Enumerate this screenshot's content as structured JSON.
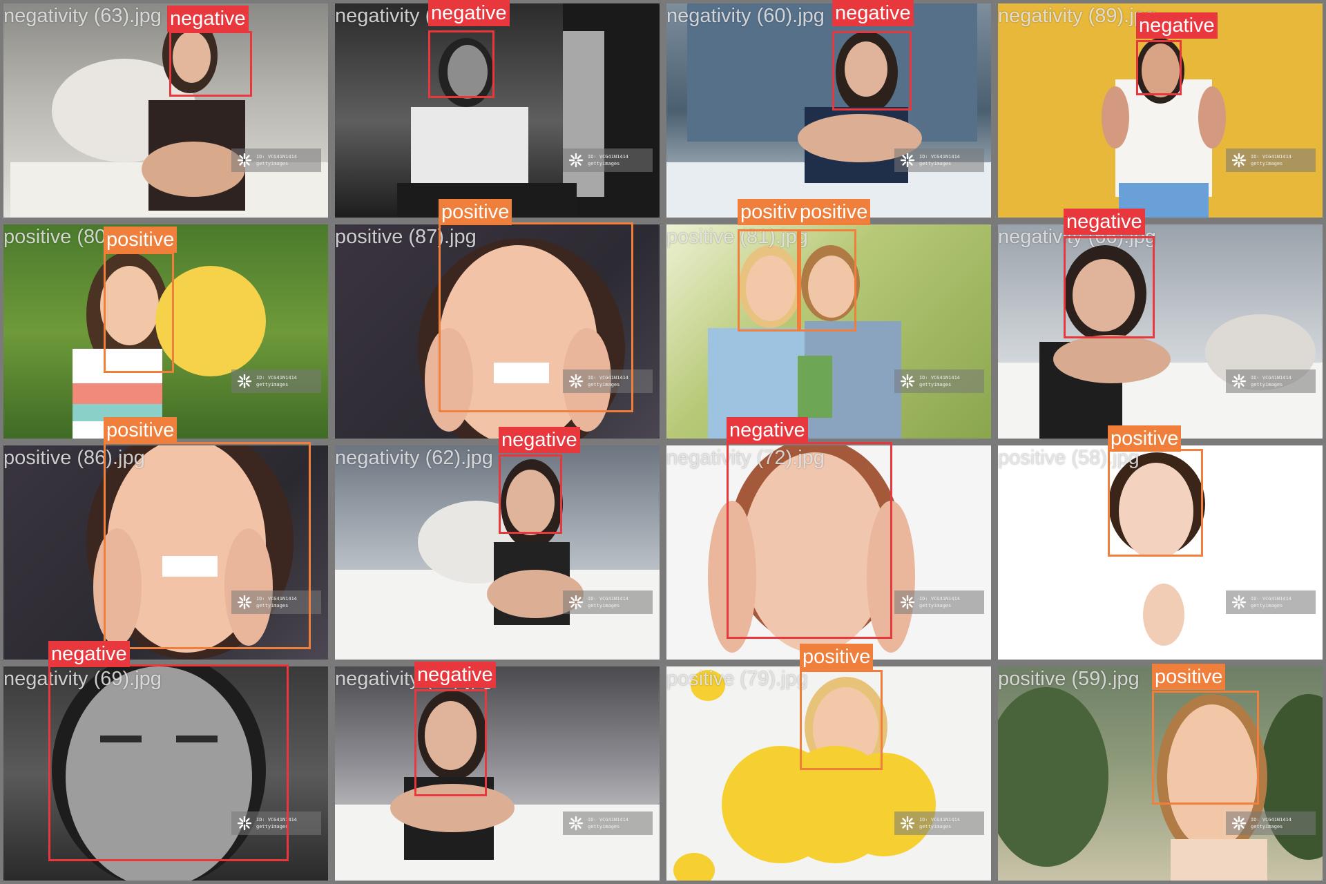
{
  "colors": {
    "negative": "#e8383d",
    "positive": "#f07f3c",
    "frame": "#7a7a7a"
  },
  "tiles": [
    {
      "file": "negativity (63).jpg",
      "label": "negative"
    },
    {
      "file": "negativity (5).jpg",
      "label": "negative"
    },
    {
      "file": "negativity (60).jpg",
      "label": "negative"
    },
    {
      "file": "negativity (89).jpg",
      "label": "negative"
    },
    {
      "file": "positive (80).jpg",
      "label": "positive"
    },
    {
      "file": "positive (87).jpg",
      "label": "positive"
    },
    {
      "file": "positive (81).jpg",
      "label": "positive",
      "label2": "positive"
    },
    {
      "file": "negativity (66).jpg",
      "label": "negative"
    },
    {
      "file": "positive (86).jpg",
      "label": "positive"
    },
    {
      "file": "negativity (62).jpg",
      "label": "negative"
    },
    {
      "file": "negativity (72).jpg",
      "label": "negative"
    },
    {
      "file": "positive (58).jpg",
      "label": "positive"
    },
    {
      "file": "negativity (69).jpg",
      "label": "negative"
    },
    {
      "file": "negativity (64).jpg",
      "label": "negative"
    },
    {
      "file": "positive (79).jpg",
      "label": "positive"
    },
    {
      "file": "positive (59).jpg",
      "label": "positive"
    }
  ],
  "watermark": {
    "line1": "ID: VCG41N1414",
    "line2": "gettyimages"
  }
}
